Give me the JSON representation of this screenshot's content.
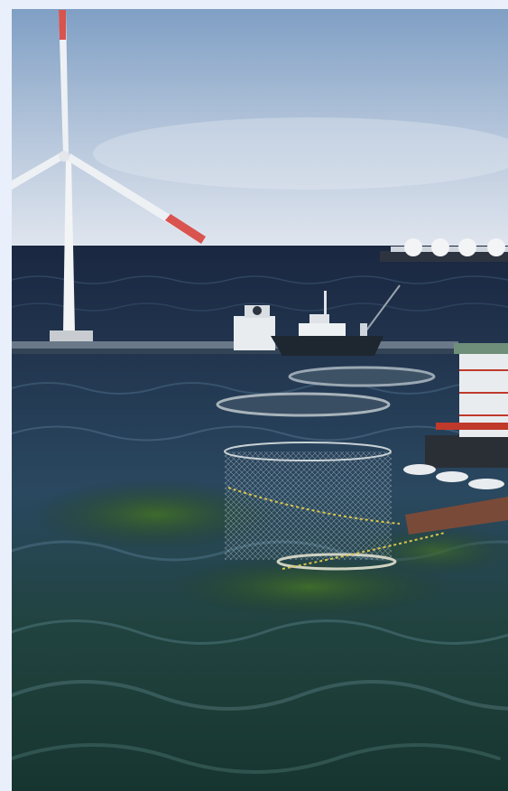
{
  "scene": {
    "colors": {
      "page_background": "#e9f0fb",
      "sky_top": "#7f9fc4",
      "sky_bottom": "#dfe5ee",
      "sea_far": "#1d2d47",
      "sea_mid": "#24415c",
      "sea_near": "#193a38",
      "turbine": "#f2f4f6",
      "turbine_stripe": "#d9534f",
      "platform_red": "#c0392b",
      "net_float": "#d9c64a"
    },
    "elements": [
      "wind-turbine",
      "lng-carrier",
      "fishing-vessel",
      "floating-breakwater",
      "circular-fish-pens",
      "submerged-net-cage",
      "seaweed-bed",
      "offshore-platform",
      "small-boats",
      "wooden-pontoon"
    ]
  }
}
